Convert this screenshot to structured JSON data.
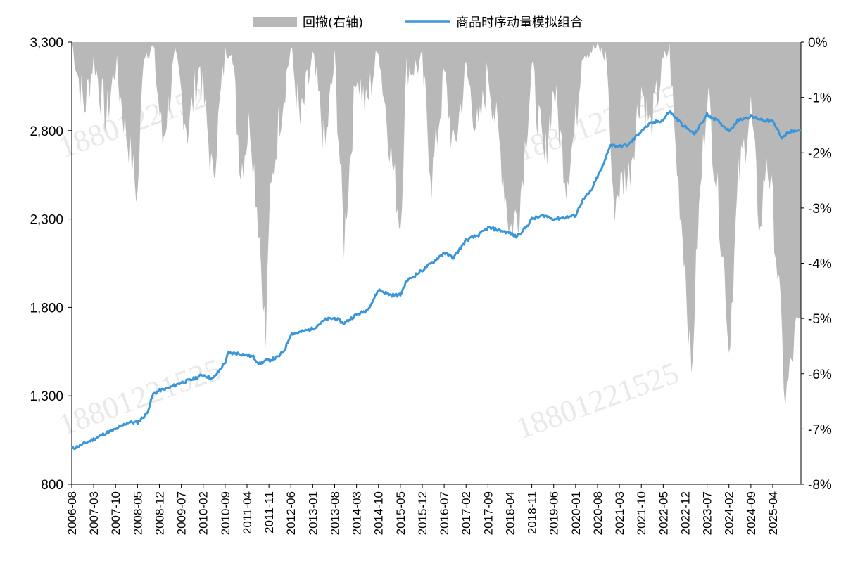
{
  "chart_data": {
    "type": "line",
    "legend": {
      "placement": "top-center",
      "items": [
        {
          "label": "回撤(右轴)",
          "kind": "area",
          "color": "#b8b8b8"
        },
        {
          "label": "商品时序动量模拟组合",
          "kind": "line",
          "color": "#3a96d8"
        }
      ]
    },
    "watermark": "18801221525",
    "left_axis": {
      "ylim": [
        800,
        3300
      ],
      "ticks": [
        800,
        1300,
        1800,
        2300,
        2800,
        3300
      ],
      "tick_labels": [
        "800",
        "1,300",
        "1,800",
        "2,300",
        "2,800",
        "3,300"
      ]
    },
    "right_axis": {
      "ylim": [
        -8,
        0
      ],
      "ticks": [
        0,
        -1,
        -2,
        -3,
        -4,
        -5,
        -6,
        -7,
        -8
      ],
      "tick_labels": [
        "0%",
        "-1%",
        "-2%",
        "-3%",
        "-4%",
        "-5%",
        "-6%",
        "-7%",
        "-8%"
      ]
    },
    "x_axis": {
      "start": "2006-08",
      "end": "2025-12",
      "tick_labels": [
        "2006-08",
        "2007-03",
        "2007-10",
        "2008-05",
        "2008-12",
        "2009-07",
        "2010-02",
        "2010-09",
        "2011-04",
        "2011-11",
        "2012-06",
        "2013-01",
        "2013-08",
        "2014-03",
        "2014-10",
        "2015-05",
        "2015-12",
        "2016-07",
        "2017-02",
        "2017-09",
        "2018-04",
        "2018-11",
        "2019-06",
        "2020-01",
        "2020-08",
        "2021-03",
        "2021-10",
        "2022-05",
        "2022-12",
        "2023-07",
        "2024-02",
        "2024-09",
        "2025-04"
      ]
    },
    "series": [
      {
        "name": "商品时序动量模拟组合",
        "axis": "left",
        "color": "#3a96d8",
        "points": [
          [
            "2006-08",
            1000
          ],
          [
            "2006-12",
            1030
          ],
          [
            "2007-03",
            1055
          ],
          [
            "2007-07",
            1090
          ],
          [
            "2007-10",
            1110
          ],
          [
            "2008-02",
            1150
          ],
          [
            "2008-05",
            1150
          ],
          [
            "2008-08",
            1200
          ],
          [
            "2008-10",
            1310
          ],
          [
            "2008-12",
            1330
          ],
          [
            "2009-03",
            1345
          ],
          [
            "2009-07",
            1375
          ],
          [
            "2009-10",
            1390
          ],
          [
            "2010-02",
            1420
          ],
          [
            "2010-05",
            1395
          ],
          [
            "2010-07",
            1440
          ],
          [
            "2010-09",
            1490
          ],
          [
            "2010-10",
            1540
          ],
          [
            "2011-01",
            1540
          ],
          [
            "2011-04",
            1530
          ],
          [
            "2011-06",
            1520
          ],
          [
            "2011-08",
            1480
          ],
          [
            "2011-10",
            1500
          ],
          [
            "2011-11",
            1500
          ],
          [
            "2012-02",
            1520
          ],
          [
            "2012-04",
            1560
          ],
          [
            "2012-06",
            1650
          ],
          [
            "2012-09",
            1660
          ],
          [
            "2013-01",
            1680
          ],
          [
            "2013-05",
            1730
          ],
          [
            "2013-08",
            1740
          ],
          [
            "2013-11",
            1710
          ],
          [
            "2014-03",
            1760
          ],
          [
            "2014-06",
            1780
          ],
          [
            "2014-08",
            1830
          ],
          [
            "2014-10",
            1900
          ],
          [
            "2015-02",
            1870
          ],
          [
            "2015-05",
            1870
          ],
          [
            "2015-07",
            1950
          ],
          [
            "2015-12",
            2010
          ],
          [
            "2016-03",
            2050
          ],
          [
            "2016-07",
            2110
          ],
          [
            "2016-10",
            2080
          ],
          [
            "2016-12",
            2130
          ],
          [
            "2017-02",
            2180
          ],
          [
            "2017-06",
            2210
          ],
          [
            "2017-09",
            2250
          ],
          [
            "2017-12",
            2240
          ],
          [
            "2018-04",
            2220
          ],
          [
            "2018-06",
            2200
          ],
          [
            "2018-09",
            2250
          ],
          [
            "2018-11",
            2300
          ],
          [
            "2019-03",
            2320
          ],
          [
            "2019-06",
            2300
          ],
          [
            "2019-10",
            2310
          ],
          [
            "2020-01",
            2320
          ],
          [
            "2020-03",
            2400
          ],
          [
            "2020-06",
            2460
          ],
          [
            "2020-08",
            2540
          ],
          [
            "2020-10",
            2610
          ],
          [
            "2020-12",
            2720
          ],
          [
            "2021-03",
            2710
          ],
          [
            "2021-06",
            2720
          ],
          [
            "2021-10",
            2800
          ],
          [
            "2022-01",
            2840
          ],
          [
            "2022-05",
            2860
          ],
          [
            "2022-07",
            2910
          ],
          [
            "2022-09",
            2870
          ],
          [
            "2022-12",
            2820
          ],
          [
            "2023-03",
            2780
          ],
          [
            "2023-07",
            2890
          ],
          [
            "2023-10",
            2860
          ],
          [
            "2024-02",
            2800
          ],
          [
            "2024-05",
            2860
          ],
          [
            "2024-09",
            2880
          ],
          [
            "2025-01",
            2860
          ],
          [
            "2025-04",
            2850
          ],
          [
            "2025-07",
            2760
          ],
          [
            "2025-09",
            2790
          ],
          [
            "2025-12",
            2800
          ]
        ]
      },
      {
        "name": "回撤(右轴)",
        "axis": "right",
        "type": "area",
        "color": "#b8b8b8",
        "points": [
          [
            "2006-08",
            0
          ],
          [
            "2006-12",
            -1.2
          ],
          [
            "2007-03",
            -0.3
          ],
          [
            "2007-07",
            -1.4
          ],
          [
            "2007-10",
            -0.4
          ],
          [
            "2008-01",
            -1.5
          ],
          [
            "2008-05",
            -2.8
          ],
          [
            "2008-07",
            -0.2
          ],
          [
            "2008-10",
            -0.1
          ],
          [
            "2009-01",
            -1.8
          ],
          [
            "2009-05",
            -0.3
          ],
          [
            "2009-09",
            -1.6
          ],
          [
            "2010-01",
            -0.4
          ],
          [
            "2010-05",
            -2.5
          ],
          [
            "2010-09",
            -0.2
          ],
          [
            "2010-11",
            -0.1
          ],
          [
            "2011-02",
            -2.3
          ],
          [
            "2011-05",
            -1.4
          ],
          [
            "2011-08",
            -3.5
          ],
          [
            "2011-10",
            -5.5
          ],
          [
            "2011-11",
            -3.2
          ],
          [
            "2012-02",
            -1.5
          ],
          [
            "2012-06",
            -0.1
          ],
          [
            "2012-09",
            -1.5
          ],
          [
            "2013-01",
            -0.3
          ],
          [
            "2013-05",
            -1.9
          ],
          [
            "2013-08",
            -0.3
          ],
          [
            "2013-11",
            -3.6
          ],
          [
            "2014-03",
            -0.5
          ],
          [
            "2014-06",
            -1.2
          ],
          [
            "2014-10",
            -0.1
          ],
          [
            "2015-02",
            -2.0
          ],
          [
            "2015-05",
            -3.3
          ],
          [
            "2015-07",
            -0.5
          ],
          [
            "2015-12",
            -0.4
          ],
          [
            "2016-03",
            -2.5
          ],
          [
            "2016-07",
            -0.6
          ],
          [
            "2016-10",
            -2.0
          ],
          [
            "2017-02",
            -0.5
          ],
          [
            "2017-06",
            -1.7
          ],
          [
            "2017-09",
            -0.5
          ],
          [
            "2018-01",
            -2.0
          ],
          [
            "2018-04",
            -3.4
          ],
          [
            "2018-07",
            -3.0
          ],
          [
            "2018-11",
            -0.5
          ],
          [
            "2019-03",
            -2.2
          ],
          [
            "2019-06",
            -0.8
          ],
          [
            "2019-10",
            -2.5
          ],
          [
            "2020-01",
            -1.5
          ],
          [
            "2020-03",
            -0.2
          ],
          [
            "2020-08",
            -0.1
          ],
          [
            "2020-11",
            -0.3
          ],
          [
            "2021-01",
            -3.0
          ],
          [
            "2021-03",
            -2.6
          ],
          [
            "2021-06",
            -2.4
          ],
          [
            "2021-10",
            -0.8
          ],
          [
            "2022-01",
            -1.6
          ],
          [
            "2022-05",
            -0.4
          ],
          [
            "2022-07",
            -0.1
          ],
          [
            "2022-09",
            -2.0
          ],
          [
            "2022-12",
            -4.0
          ],
          [
            "2023-02",
            -6.1
          ],
          [
            "2023-04",
            -3.5
          ],
          [
            "2023-07",
            -0.8
          ],
          [
            "2023-10",
            -2.5
          ],
          [
            "2024-01",
            -4.5
          ],
          [
            "2024-02",
            -5.6
          ],
          [
            "2024-05",
            -2.5
          ],
          [
            "2024-09",
            -1.2
          ],
          [
            "2024-12",
            -3.5
          ],
          [
            "2025-02",
            -2.0
          ],
          [
            "2025-04",
            -3.0
          ],
          [
            "2025-06",
            -4.5
          ],
          [
            "2025-08",
            -6.5
          ],
          [
            "2025-10",
            -5.8
          ],
          [
            "2025-12",
            -5.0
          ]
        ]
      }
    ]
  }
}
